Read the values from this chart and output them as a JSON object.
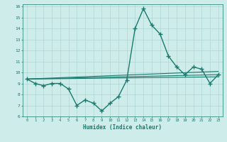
{
  "xlabel": "Humidex (Indice chaleur)",
  "ylabel": "",
  "bg_color": "#cdecea",
  "line_color": "#1a7a6e",
  "grid_color": "#afd6d3",
  "xlim": [
    -0.5,
    23.5
  ],
  "ylim": [
    6,
    16.2
  ],
  "xticks": [
    0,
    1,
    2,
    3,
    4,
    5,
    6,
    7,
    8,
    9,
    10,
    11,
    12,
    13,
    14,
    15,
    16,
    17,
    18,
    19,
    20,
    21,
    22,
    23
  ],
  "yticks": [
    6,
    7,
    8,
    9,
    10,
    11,
    12,
    13,
    14,
    15,
    16
  ],
  "series": [
    {
      "x": [
        0,
        1,
        2,
        3,
        4,
        5,
        6,
        7,
        8,
        9,
        10,
        11,
        12,
        13,
        14,
        15,
        16,
        17,
        18,
        19,
        20,
        21,
        22,
        23
      ],
      "y": [
        9.4,
        9.0,
        8.8,
        9.0,
        9.0,
        8.5,
        7.0,
        7.5,
        7.2,
        6.5,
        7.2,
        7.8,
        9.3,
        14.0,
        15.8,
        14.3,
        13.5,
        11.5,
        10.5,
        9.8,
        10.5,
        10.3,
        9.0,
        9.8
      ],
      "marker": "+",
      "markersize": 4,
      "linewidth": 1.0
    },
    {
      "x": [
        0,
        23
      ],
      "y": [
        9.4,
        9.6
      ],
      "marker": null,
      "markersize": 0,
      "linewidth": 0.8
    },
    {
      "x": [
        0,
        23
      ],
      "y": [
        9.4,
        9.8
      ],
      "marker": null,
      "markersize": 0,
      "linewidth": 0.8
    },
    {
      "x": [
        0,
        23
      ],
      "y": [
        9.4,
        10.1
      ],
      "marker": null,
      "markersize": 0,
      "linewidth": 0.8
    }
  ]
}
